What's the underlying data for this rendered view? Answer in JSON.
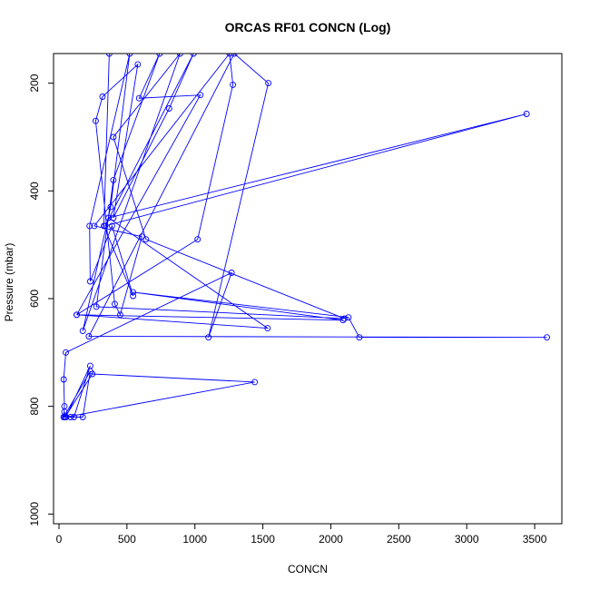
{
  "chart_data": {
    "type": "line",
    "title": "ORCAS RF01 CONCN (Log)",
    "xlabel": "CONCN",
    "ylabel": "Pressure (mbar)",
    "xlim": [
      -40,
      3700
    ],
    "ylim": [
      1018,
      145
    ],
    "y_reversed": true,
    "x_ticks": [
      0,
      500,
      1000,
      1500,
      2000,
      2500,
      3000,
      3500
    ],
    "x_tick_labels": [
      "0",
      "500",
      "1000",
      "1500",
      "2000",
      "2500",
      "3000",
      "3500"
    ],
    "y_ticks": [
      200,
      400,
      600,
      800,
      1000
    ],
    "y_tick_labels": [
      "200",
      "400",
      "600",
      "800",
      "1000"
    ],
    "grid": false,
    "colors": {
      "series": "#0000ff",
      "axis": "#000000",
      "background": "#ffffff"
    },
    "series": [
      {
        "marker": "open-circle",
        "points": [
          [
            35,
            820
          ],
          [
            50,
            820
          ],
          [
            110,
            820
          ],
          [
            230,
            725
          ],
          [
            50,
            820
          ],
          [
            1440,
            755
          ],
          [
            245,
            740
          ],
          [
            45,
            820
          ],
          [
            40,
            810
          ],
          [
            45,
            820
          ],
          [
            85,
            820
          ],
          [
            175,
            820
          ],
          [
            230,
            735
          ],
          [
            35,
            820
          ],
          [
            40,
            800
          ],
          [
            35,
            750
          ],
          [
            50,
            700
          ],
          [
            1270,
            552
          ],
          [
            1100,
            672
          ],
          [
            1540,
            200
          ],
          [
            1290,
            145
          ],
          [
            220,
            670
          ],
          [
            3590,
            672
          ],
          [
            2210,
            672
          ],
          [
            2130,
            635
          ],
          [
            545,
            588
          ],
          [
            2090,
            640
          ],
          [
            130,
            630
          ],
          [
            1535,
            655
          ],
          [
            365,
            450
          ],
          [
            3440,
            257
          ],
          [
            340,
            465
          ],
          [
            990,
            145
          ],
          [
            810,
            247
          ],
          [
            400,
            450
          ],
          [
            580,
            165
          ],
          [
            320,
            225
          ],
          [
            270,
            270
          ],
          [
            410,
            610
          ],
          [
            450,
            630
          ],
          [
            610,
            485
          ],
          [
            260,
            465
          ],
          [
            1255,
            145
          ],
          [
            1280,
            203
          ],
          [
            1020,
            490
          ],
          [
            130,
            630
          ],
          [
            1040,
            222
          ],
          [
            590,
            228
          ],
          [
            740,
            145
          ],
          [
            400,
            380
          ],
          [
            275,
            615
          ],
          [
            2100,
            637
          ],
          [
            640,
            490
          ],
          [
            400,
            300
          ],
          [
            890,
            145
          ],
          [
            175,
            660
          ],
          [
            380,
            430
          ],
          [
            520,
            145
          ],
          [
            225,
            465
          ],
          [
            230,
            568
          ],
          [
            390,
            465
          ],
          [
            545,
            595
          ],
          [
            330,
            465
          ],
          [
            370,
            145
          ]
        ]
      }
    ]
  }
}
